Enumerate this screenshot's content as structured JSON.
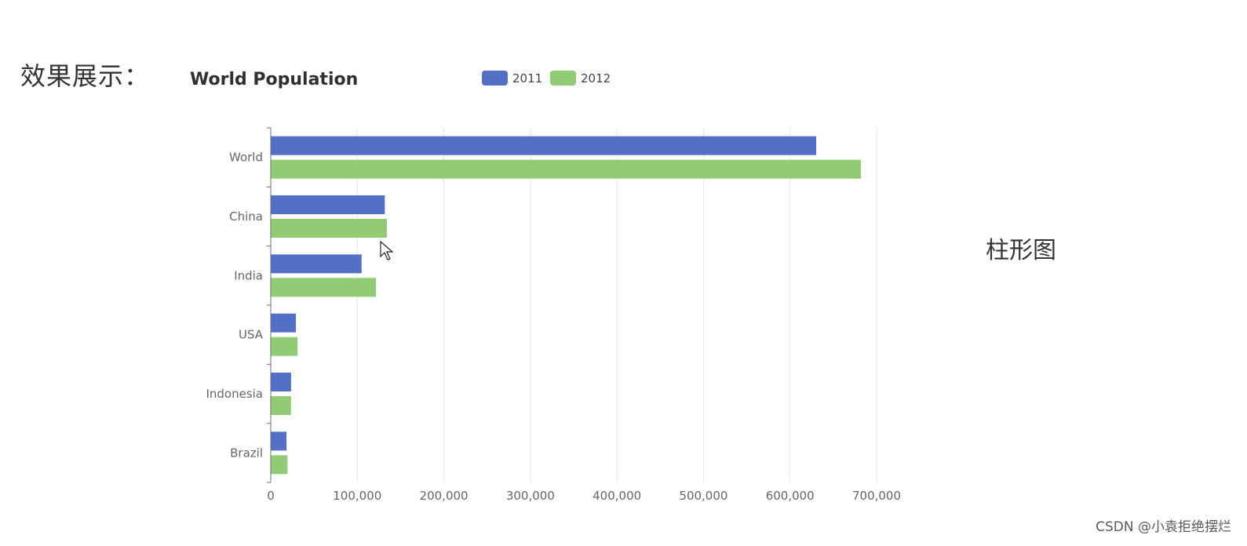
{
  "page": {
    "label": "效果展示：",
    "side_label": "柱形图",
    "watermark": "CSDN @小袁拒绝摆烂"
  },
  "chart_data": {
    "type": "bar",
    "orientation": "horizontal",
    "title": "World Population",
    "categories": [
      "World",
      "China",
      "India",
      "USA",
      "Indonesia",
      "Brazil"
    ],
    "series": [
      {
        "name": "2011",
        "color": "#5470c6",
        "values": [
          630230,
          131744,
          104970,
          29034,
          23489,
          18203
        ]
      },
      {
        "name": "2012",
        "color": "#91cc75",
        "values": [
          681807,
          134141,
          121594,
          31000,
          23438,
          19325
        ]
      }
    ],
    "xlim": [
      0,
      700000
    ],
    "x_ticks": [
      0,
      100000,
      200000,
      300000,
      400000,
      500000,
      600000,
      700000
    ],
    "x_tick_labels": [
      "0",
      "100,000",
      "200,000",
      "300,000",
      "400,000",
      "500,000",
      "600,000",
      "700,000"
    ],
    "legend_position": "top-center",
    "grid": true
  }
}
